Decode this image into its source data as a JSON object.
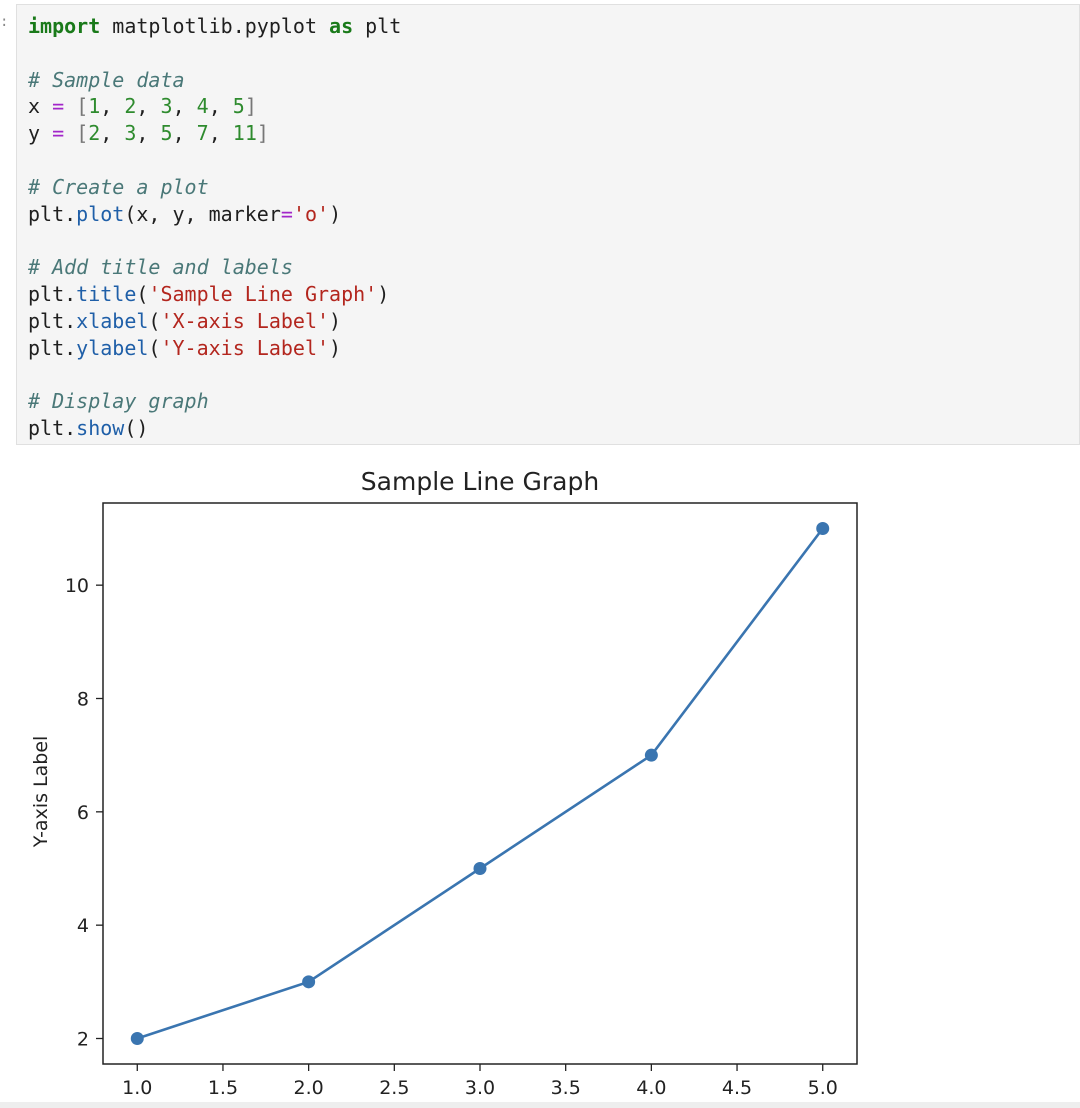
{
  "cell": {
    "prompt_marker": ":",
    "code_lines": [
      [
        {
          "t": "import",
          "c": "kw"
        },
        {
          "t": " matplotlib.pyplot ",
          "c": ""
        },
        {
          "t": "as",
          "c": "kw"
        },
        {
          "t": " plt",
          "c": ""
        }
      ],
      [],
      [
        {
          "t": "# Sample data",
          "c": "cm"
        }
      ],
      [
        {
          "t": "x ",
          "c": ""
        },
        {
          "t": "=",
          "c": "op"
        },
        {
          "t": " ",
          "c": ""
        },
        {
          "t": "[",
          "c": "br"
        },
        {
          "t": "1",
          "c": "num"
        },
        {
          "t": ", ",
          "c": ""
        },
        {
          "t": "2",
          "c": "num"
        },
        {
          "t": ", ",
          "c": ""
        },
        {
          "t": "3",
          "c": "num"
        },
        {
          "t": ", ",
          "c": ""
        },
        {
          "t": "4",
          "c": "num"
        },
        {
          "t": ", ",
          "c": ""
        },
        {
          "t": "5",
          "c": "num"
        },
        {
          "t": "]",
          "c": "br"
        }
      ],
      [
        {
          "t": "y ",
          "c": ""
        },
        {
          "t": "=",
          "c": "op"
        },
        {
          "t": " ",
          "c": ""
        },
        {
          "t": "[",
          "c": "br"
        },
        {
          "t": "2",
          "c": "num"
        },
        {
          "t": ", ",
          "c": ""
        },
        {
          "t": "3",
          "c": "num"
        },
        {
          "t": ", ",
          "c": ""
        },
        {
          "t": "5",
          "c": "num"
        },
        {
          "t": ", ",
          "c": ""
        },
        {
          "t": "7",
          "c": "num"
        },
        {
          "t": ", ",
          "c": ""
        },
        {
          "t": "11",
          "c": "num"
        },
        {
          "t": "]",
          "c": "br"
        }
      ],
      [],
      [
        {
          "t": "# Create a plot",
          "c": "cm"
        }
      ],
      [
        {
          "t": "plt.",
          "c": ""
        },
        {
          "t": "plot",
          "c": "fn"
        },
        {
          "t": "(x, y, marker",
          "c": ""
        },
        {
          "t": "=",
          "c": "op"
        },
        {
          "t": "'o'",
          "c": "str"
        },
        {
          "t": ")",
          "c": ""
        }
      ],
      [],
      [
        {
          "t": "# Add title and labels",
          "c": "cm"
        }
      ],
      [
        {
          "t": "plt.",
          "c": ""
        },
        {
          "t": "title",
          "c": "fn"
        },
        {
          "t": "(",
          "c": ""
        },
        {
          "t": "'Sample Line Graph'",
          "c": "str"
        },
        {
          "t": ")",
          "c": ""
        }
      ],
      [
        {
          "t": "plt.",
          "c": ""
        },
        {
          "t": "xlabel",
          "c": "fn"
        },
        {
          "t": "(",
          "c": ""
        },
        {
          "t": "'X-axis Label'",
          "c": "str"
        },
        {
          "t": ")",
          "c": ""
        }
      ],
      [
        {
          "t": "plt.",
          "c": ""
        },
        {
          "t": "ylabel",
          "c": "fn"
        },
        {
          "t": "(",
          "c": ""
        },
        {
          "t": "'Y-axis Label'",
          "c": "str"
        },
        {
          "t": ")",
          "c": ""
        }
      ],
      [],
      [
        {
          "t": "# Display graph",
          "c": "cm"
        }
      ],
      [
        {
          "t": "plt.",
          "c": ""
        },
        {
          "t": "show",
          "c": "fn"
        },
        {
          "t": "()",
          "c": ""
        }
      ]
    ]
  },
  "chart_data": {
    "type": "line",
    "title": "Sample Line Graph",
    "xlabel": "",
    "ylabel": "Y-axis Label",
    "x": [
      1,
      2,
      3,
      4,
      5
    ],
    "series": [
      {
        "values": [
          2,
          3,
          5,
          7,
          11
        ],
        "marker": "o",
        "color": "#3a75b0"
      }
    ],
    "xticks": [
      "1.0",
      "1.5",
      "2.0",
      "2.5",
      "3.0",
      "3.5",
      "4.0",
      "4.5",
      "5.0"
    ],
    "yticks": [
      "2",
      "4",
      "6",
      "8",
      "10"
    ],
    "xlim": [
      0.8,
      5.2
    ],
    "ylim": [
      1.55,
      11.45
    ],
    "grid": false
  }
}
